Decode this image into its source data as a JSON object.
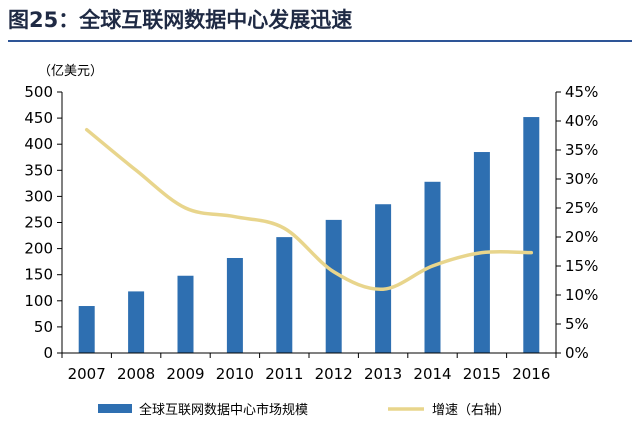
{
  "figure": {
    "title": "图25：全球互联网数据中心发展迅速"
  },
  "colors": {
    "bar": "#2e6fb1",
    "line": "#e8d58c",
    "title_rule": "#2e5597"
  },
  "chart_data": {
    "type": "bar",
    "categories": [
      "2007",
      "2008",
      "2009",
      "2010",
      "2011",
      "2012",
      "2013",
      "2014",
      "2015",
      "2016"
    ],
    "y_unit": "（亿美元）",
    "ylim": [
      0,
      500
    ],
    "yticks": [
      "0",
      "50",
      "100",
      "150",
      "200",
      "250",
      "300",
      "350",
      "400",
      "450",
      "500"
    ],
    "y2lim": [
      0,
      45
    ],
    "y2ticks": [
      "0%",
      "5%",
      "10%",
      "15%",
      "20%",
      "25%",
      "30%",
      "35%",
      "40%",
      "45%"
    ],
    "grid": false,
    "legend_position": "bottom",
    "series": [
      {
        "name": "全球互联网数据中心市场规模",
        "type": "bar",
        "axis": "left",
        "values": [
          90,
          118,
          148,
          182,
          222,
          255,
          285,
          328,
          385,
          452
        ]
      },
      {
        "name": "增速（右轴）",
        "type": "line",
        "axis": "right",
        "values": [
          38.5,
          31.5,
          25.0,
          23.5,
          21.5,
          14.0,
          11.0,
          15.0,
          17.3,
          17.3
        ]
      }
    ]
  }
}
